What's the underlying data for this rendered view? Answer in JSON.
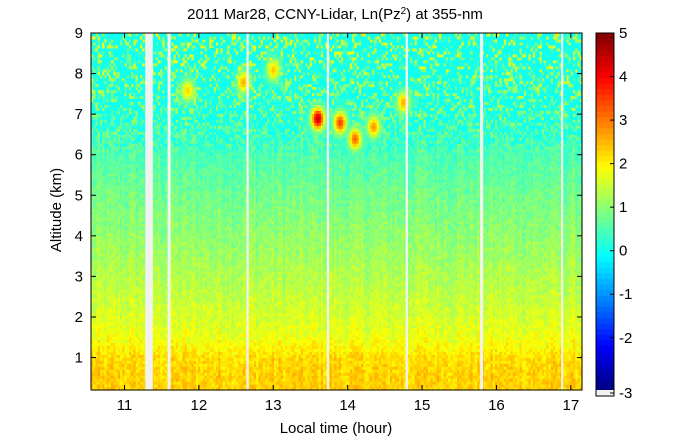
{
  "chart_data": {
    "type": "heatmap",
    "title": "2011 Mar28, CCNY-Lidar, Ln(Pz",
    "title_superscript": "2",
    "title_tail": ") at 355-nm",
    "xlabel": "Local time (hour)",
    "ylabel": "Altitude (km)",
    "xlim": [
      10.55,
      17.15
    ],
    "ylim": [
      0.2,
      9.0
    ],
    "x_ticks": [
      11,
      12,
      13,
      14,
      15,
      16,
      17
    ],
    "y_ticks": [
      1,
      2,
      3,
      4,
      5,
      6,
      7,
      8,
      9
    ],
    "colorbar": {
      "min": -3.2,
      "max": 5.0,
      "ticks": [
        -3,
        -2,
        -1,
        0,
        1,
        2,
        3,
        4,
        5
      ],
      "colormap": "jet",
      "out_of_range_color": "#f2f2f2"
    },
    "data_gaps_hours": [
      [
        11.28,
        11.38
      ],
      [
        11.58,
        11.62
      ],
      [
        12.64,
        12.67
      ],
      [
        13.72,
        13.75
      ],
      [
        14.78,
        14.81
      ],
      [
        15.78,
        15.82
      ],
      [
        16.87,
        16.89
      ]
    ],
    "altitude_profile_km_vs_lnPz2": [
      [
        0.25,
        2.3
      ],
      [
        0.5,
        2.3
      ],
      [
        1.0,
        2.2
      ],
      [
        1.2,
        2.0
      ],
      [
        1.5,
        1.8
      ],
      [
        2.0,
        1.6
      ],
      [
        3.0,
        1.3
      ],
      [
        4.0,
        1.05
      ],
      [
        5.0,
        0.8
      ],
      [
        6.0,
        0.5
      ],
      [
        7.0,
        0.1
      ],
      [
        8.0,
        -0.3
      ],
      [
        9.0,
        -0.8
      ]
    ],
    "cloud_features": [
      {
        "time_hour": 13.6,
        "altitude_km": 6.9,
        "value": 4.5
      },
      {
        "time_hour": 13.9,
        "altitude_km": 6.8,
        "value": 3.5
      },
      {
        "time_hour": 14.1,
        "altitude_km": 6.4,
        "value": 3.2
      },
      {
        "time_hour": 14.35,
        "altitude_km": 6.7,
        "value": 2.8
      },
      {
        "time_hour": 14.75,
        "altitude_km": 7.3,
        "value": 2.6
      },
      {
        "time_hour": 12.6,
        "altitude_km": 7.8,
        "value": 2.6
      },
      {
        "time_hour": 13.0,
        "altitude_km": 8.1,
        "value": 2.4
      },
      {
        "time_hour": 11.85,
        "altitude_km": 7.6,
        "value": 2.3
      }
    ]
  }
}
